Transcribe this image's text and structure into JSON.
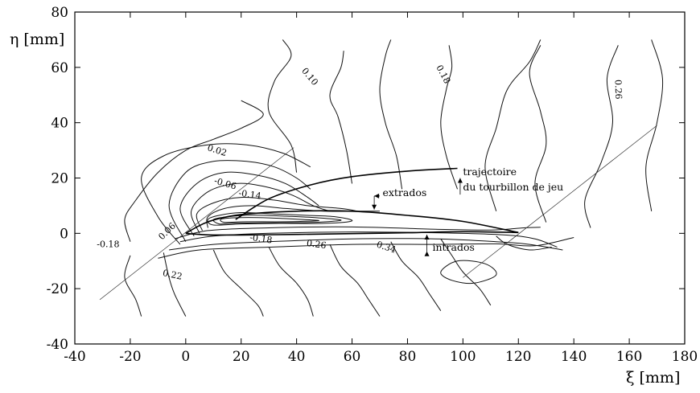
{
  "chart_data": {
    "type": "contour",
    "title": "",
    "xlabel": "ξ [mm]",
    "ylabel": "η [mm]",
    "xlim": [
      -40,
      180
    ],
    "ylim": [
      -40,
      80
    ],
    "grid": false,
    "x_ticks": [
      "-40",
      "-20",
      "0",
      "20",
      "40",
      "60",
      "80",
      "100",
      "120",
      "140",
      "160",
      "180"
    ],
    "y_ticks": [
      "-40",
      "-20",
      "0",
      "20",
      "40",
      "60",
      "80"
    ],
    "contour_labels": [
      {
        "text": "0.10",
        "x": 44,
        "y": 56,
        "angle": 50
      },
      {
        "text": "0.18",
        "x": 92,
        "y": 57,
        "angle": 62
      },
      {
        "text": "0.26",
        "x": 155,
        "y": 52,
        "angle": 88
      },
      {
        "text": "0.02",
        "x": 11,
        "y": 29,
        "angle": 18
      },
      {
        "text": "-0.06",
        "x": 14,
        "y": 17,
        "angle": 16
      },
      {
        "text": "-0.14",
        "x": 23,
        "y": 13,
        "angle": 8
      },
      {
        "text": "0.06",
        "x": -6,
        "y": 0,
        "angle": -45
      },
      {
        "text": "-0.18",
        "x": -28,
        "y": -5,
        "angle": 0
      },
      {
        "text": "-0.18",
        "x": 27,
        "y": -3,
        "angle": 8
      },
      {
        "text": "0.26",
        "x": 47,
        "y": -5,
        "angle": 8
      },
      {
        "text": "0.22",
        "x": -5,
        "y": -16,
        "angle": 12
      },
      {
        "text": "0.34",
        "x": 72,
        "y": -6,
        "angle": 18
      }
    ],
    "annotations": [
      {
        "text": "trajectoire",
        "x": 100,
        "y": 21
      },
      {
        "text": "du tourbillon de jeu",
        "x": 100,
        "y": 15.5
      },
      {
        "text": "extrados",
        "x": 71,
        "y": 13.5
      },
      {
        "text": "intrados",
        "x": 89,
        "y": -6.3
      }
    ],
    "vortex_trajectory": {
      "x": [
        18,
        30,
        45,
        60,
        80,
        98
      ],
      "y": [
        5,
        12.5,
        17.5,
        20.5,
        22.5,
        23.5
      ]
    },
    "profile": {
      "extrados": {
        "x": [
          0,
          5,
          10,
          20,
          40,
          60,
          80,
          100,
          120
        ],
        "y": [
          0,
          2.8,
          4.8,
          6.8,
          8,
          8,
          6.5,
          4.3,
          0.3
        ]
      },
      "intrados": {
        "x": [
          0,
          5,
          10,
          20,
          40,
          60,
          80,
          100,
          120
        ],
        "y": [
          0,
          -0.4,
          -0.6,
          -0.6,
          -0.4,
          -0.1,
          0.2,
          0.6,
          0.3
        ]
      }
    },
    "reference_lines": [
      {
        "x": [
          -31,
          39
        ],
        "y": [
          -24,
          31
        ]
      },
      {
        "x": [
          100,
          170
        ],
        "y": [
          -16,
          39
        ]
      }
    ]
  }
}
